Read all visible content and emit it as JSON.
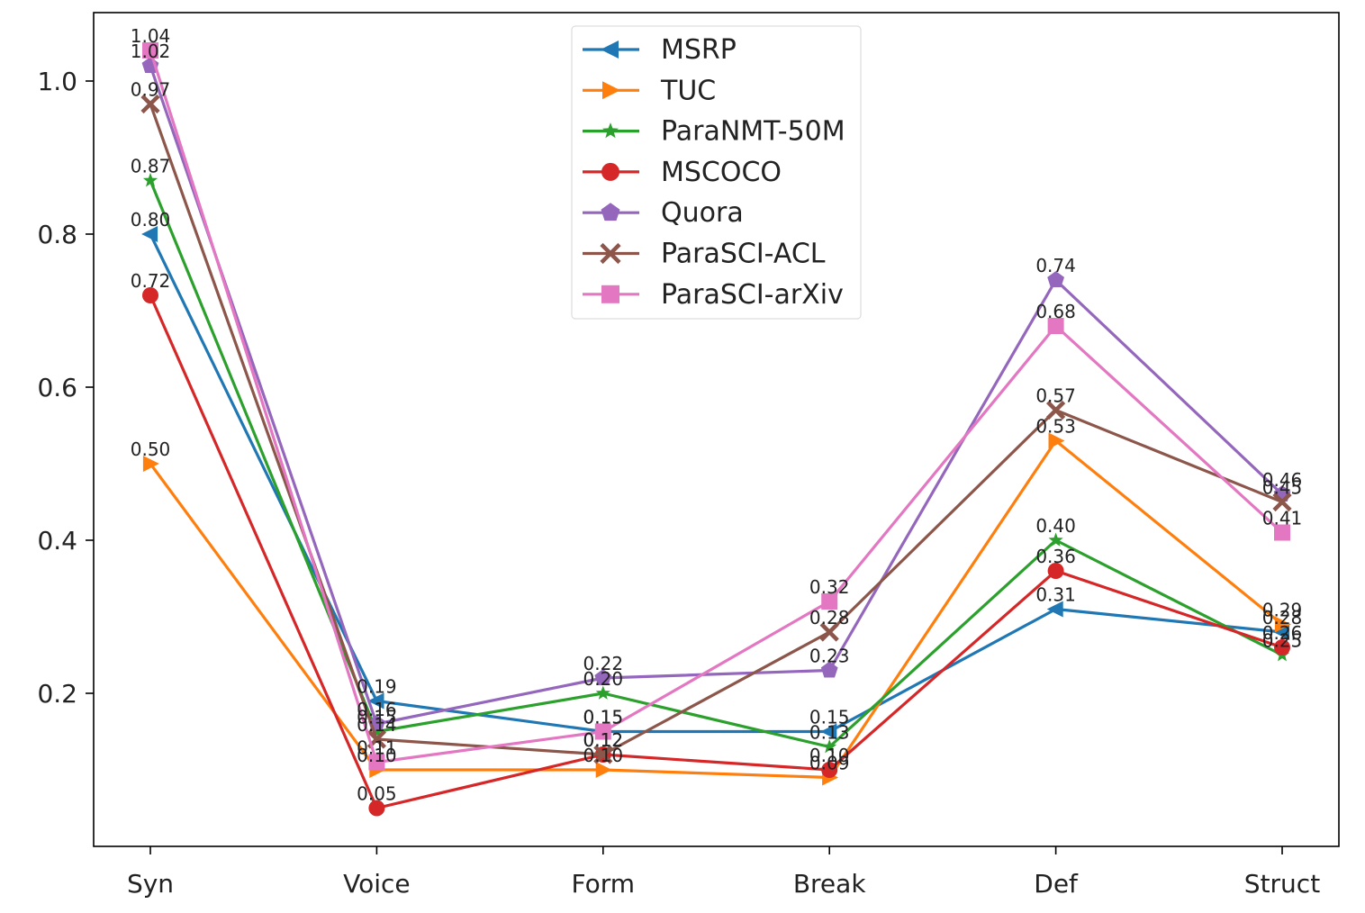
{
  "chart_data": {
    "type": "line",
    "title": "",
    "xlabel": "",
    "ylabel": "",
    "categories": [
      "Syn",
      "Voice",
      "Form",
      "Break",
      "Def",
      "Struct"
    ],
    "ylim": [
      0.0,
      1.1
    ],
    "yticks": [
      0.2,
      0.4,
      0.6,
      0.8,
      1.0
    ],
    "ytick_labels": [
      "0.2",
      "0.4",
      "0.6",
      "0.8",
      "1.0"
    ],
    "grid": false,
    "legend_position": "top-center",
    "series": [
      {
        "name": "MSRP",
        "color": "#1f77b4",
        "marker": "triangle-left",
        "values": [
          0.8,
          0.19,
          0.15,
          0.15,
          0.31,
          0.28
        ]
      },
      {
        "name": "TUC",
        "color": "#ff7f0e",
        "marker": "triangle-right",
        "values": [
          0.5,
          0.1,
          0.1,
          0.09,
          0.53,
          0.29
        ]
      },
      {
        "name": "ParaNMT-50M",
        "color": "#2ca02c",
        "marker": "star",
        "values": [
          0.87,
          0.15,
          0.2,
          0.13,
          0.4,
          0.25
        ]
      },
      {
        "name": "MSCOCO",
        "color": "#d62728",
        "marker": "circle",
        "values": [
          0.72,
          0.05,
          0.12,
          0.1,
          0.36,
          0.26
        ]
      },
      {
        "name": "Quora",
        "color": "#9467bd",
        "marker": "pentagon",
        "values": [
          1.02,
          0.16,
          0.22,
          0.23,
          0.74,
          0.46
        ]
      },
      {
        "name": "ParaSCI-ACL",
        "color": "#8c564b",
        "marker": "x",
        "values": [
          0.97,
          0.14,
          0.12,
          0.28,
          0.57,
          0.45
        ]
      },
      {
        "name": "ParaSCI-arXiv",
        "color": "#e377c2",
        "marker": "square",
        "values": [
          1.04,
          0.11,
          0.15,
          0.32,
          0.68,
          0.41
        ]
      }
    ]
  }
}
